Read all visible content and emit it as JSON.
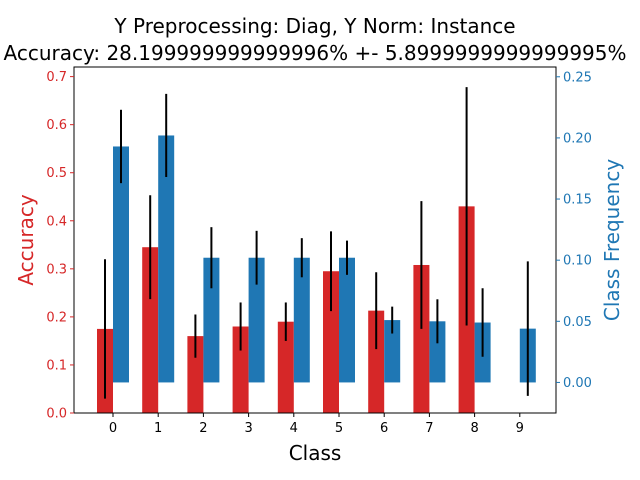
{
  "chart_data": {
    "type": "bar",
    "title_line1": "Y Preprocessing: Diag, Y Norm: Instance",
    "title_line2": "Accuracy: 28.199999999999996% +- 5.8999999999999995%",
    "xlabel": "Class",
    "ylabel_left": "Accuracy",
    "ylabel_right": "Class Frequency",
    "categories": [
      "0",
      "1",
      "2",
      "3",
      "4",
      "5",
      "6",
      "7",
      "8",
      "9"
    ],
    "left_axis": {
      "ylim": [
        0,
        0.72
      ],
      "ticks": [
        0.0,
        0.1,
        0.2,
        0.3,
        0.4,
        0.5,
        0.6,
        0.7
      ],
      "tick_labels": [
        "0.0",
        "0.1",
        "0.2",
        "0.3",
        "0.4",
        "0.5",
        "0.6",
        "0.7"
      ]
    },
    "right_axis": {
      "ylim": [
        -0.025,
        0.258
      ],
      "ticks": [
        0.0,
        0.05,
        0.1,
        0.15,
        0.2,
        0.25
      ],
      "tick_labels": [
        "0.00",
        "0.05",
        "0.10",
        "0.15",
        "0.20",
        "0.25"
      ]
    },
    "series": [
      {
        "axis": "left",
        "color": "#d62728",
        "values": [
          0.175,
          0.345,
          0.16,
          0.18,
          0.19,
          0.295,
          0.213,
          0.308,
          0.43,
          0.0
        ],
        "errors": [
          0.145,
          0.108,
          0.045,
          0.05,
          0.04,
          0.083,
          0.08,
          0.133,
          0.248,
          0.0
        ]
      },
      {
        "axis": "right",
        "color": "#1f77b4",
        "values": [
          0.193,
          0.202,
          0.102,
          0.102,
          0.102,
          0.102,
          0.051,
          0.05,
          0.049,
          0.044
        ],
        "errors": [
          0.03,
          0.034,
          0.025,
          0.022,
          0.016,
          0.014,
          0.011,
          0.018,
          0.028,
          0.055
        ]
      }
    ]
  }
}
